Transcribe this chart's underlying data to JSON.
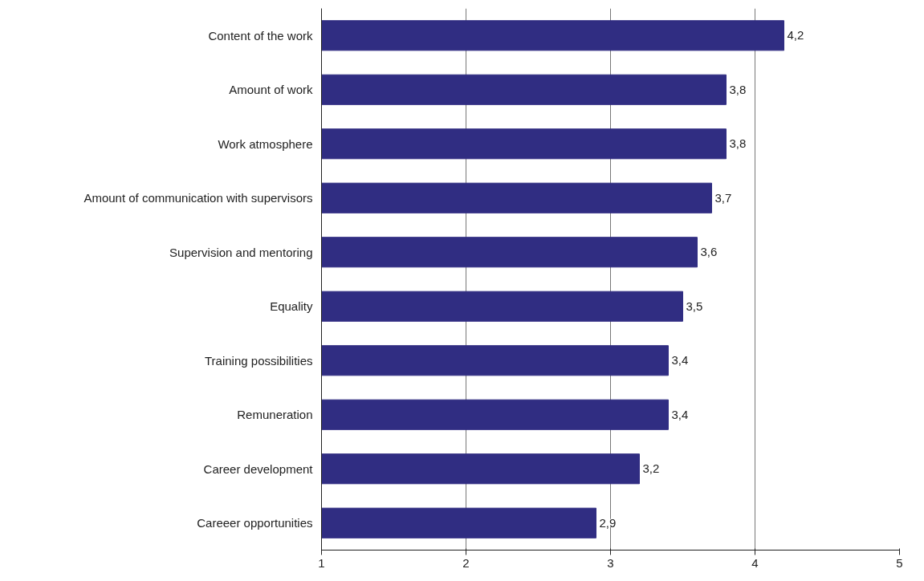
{
  "chart_data": {
    "type": "bar",
    "orientation": "horizontal",
    "categories": [
      "Content of the work",
      "Amount of work",
      "Work atmosphere",
      "Amount of communication with supervisors",
      "Supervision and mentoring",
      "Equality",
      "Training possibilities",
      "Remuneration",
      "Career development",
      "Careeer opportunities"
    ],
    "values": [
      4.2,
      3.8,
      3.8,
      3.7,
      3.6,
      3.5,
      3.4,
      3.4,
      3.2,
      2.9
    ],
    "value_labels": [
      "4,2",
      "3,8",
      "3,8",
      "3,7",
      "3,6",
      "3,5",
      "3,4",
      "3,4",
      "3,2",
      "2,9"
    ],
    "color": "#302d82",
    "xlim": [
      1,
      5
    ],
    "xticks": [
      1,
      2,
      3,
      4,
      5
    ],
    "grid": "x"
  }
}
